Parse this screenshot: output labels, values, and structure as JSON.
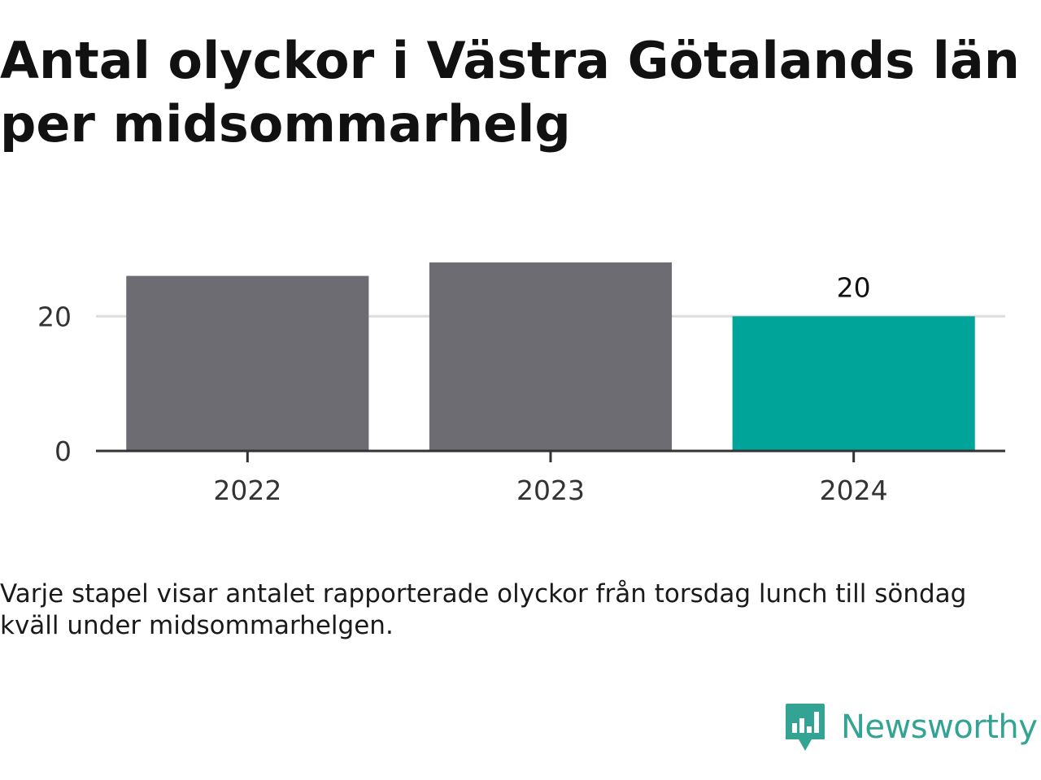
{
  "title": "Antal olyckor i Västra Götalands län per midsommarhelg",
  "note": "Varje stapel visar antalet rapporterade olyckor från torsdag lunch till söndag kväll under midsommarhelgen.",
  "brand": {
    "name": "Newsworthy",
    "icon": "newsworthy-logo-icon",
    "color": "#33a394"
  },
  "chart_data": {
    "type": "bar",
    "categories": [
      "2022",
      "2023",
      "2024"
    ],
    "values": [
      26,
      28,
      20
    ],
    "colors": [
      "#6d6c72",
      "#6d6c72",
      "#00a499"
    ],
    "data_labels": [
      null,
      null,
      "20"
    ],
    "yticks": [
      0,
      20
    ],
    "ylim": [
      0,
      28
    ],
    "grid": true,
    "xlabel": "",
    "ylabel": ""
  }
}
